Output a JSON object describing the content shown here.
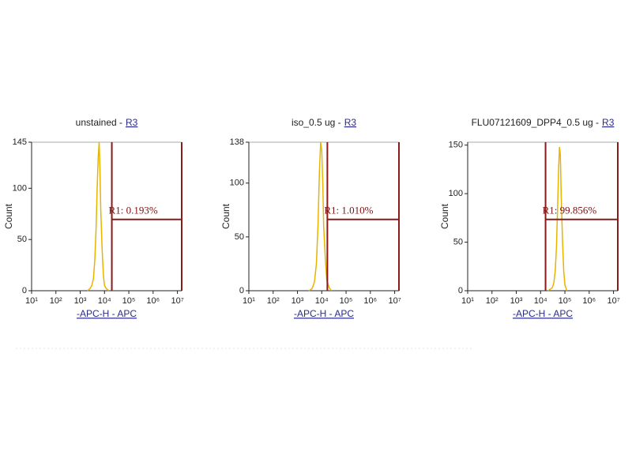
{
  "chart_data": [
    {
      "type": "histogram",
      "title": "unstained -",
      "region": "R3",
      "ylabel": "Count",
      "xlabel": "-APC-H - APC",
      "xscale": "log",
      "xlim": [
        10,
        15000000
      ],
      "xticks": [
        {
          "value": 10,
          "label": "10¹"
        },
        {
          "value": 100,
          "label": "10²"
        },
        {
          "value": 1000,
          "label": "10³"
        },
        {
          "value": 10000,
          "label": "10⁴"
        },
        {
          "value": 100000,
          "label": "10⁵"
        },
        {
          "value": 1000000,
          "label": "10⁶"
        },
        {
          "value": 10000000,
          "label": "10⁷"
        }
      ],
      "ylim": [
        0,
        145
      ],
      "yticks": [
        0,
        50,
        100,
        145
      ],
      "series": [
        {
          "color": "#e8b400",
          "x": [
            2000,
            2500,
            3000,
            3500,
            4000,
            4500,
            5000,
            5500,
            6000,
            6500,
            7000,
            8000,
            9000,
            10000,
            12000,
            15000
          ],
          "values": [
            0,
            2,
            5,
            12,
            30,
            60,
            100,
            130,
            145,
            120,
            80,
            40,
            15,
            5,
            2,
            0
          ]
        }
      ],
      "gate": {
        "label": "R1: 0.193%",
        "range": [
          20000,
          15000000
        ],
        "color": "#8b1a1a"
      }
    },
    {
      "type": "histogram",
      "title": "iso_0.5 ug -",
      "region": "R3",
      "ylabel": "Count",
      "xlabel": "-APC-H - APC",
      "xscale": "log",
      "xlim": [
        10,
        15000000
      ],
      "xticks": [
        {
          "value": 10,
          "label": "10¹"
        },
        {
          "value": 100,
          "label": "10²"
        },
        {
          "value": 1000,
          "label": "10³"
        },
        {
          "value": 10000,
          "label": "10⁴"
        },
        {
          "value": 100000,
          "label": "10⁵"
        },
        {
          "value": 1000000,
          "label": "10⁶"
        },
        {
          "value": 10000000,
          "label": "10⁷"
        }
      ],
      "ylim": [
        0,
        138
      ],
      "yticks": [
        0,
        50,
        100,
        138
      ],
      "series": [
        {
          "color": "#e8b400",
          "x": [
            3000,
            4000,
            5000,
            6000,
            7000,
            8000,
            9000,
            10000,
            11000,
            12000,
            14000,
            16000,
            20000,
            25000
          ],
          "values": [
            0,
            2,
            8,
            25,
            60,
            110,
            138,
            130,
            100,
            60,
            30,
            10,
            3,
            0
          ]
        }
      ],
      "gate": {
        "label": "R1: 1.010%",
        "range": [
          17000,
          15000000
        ],
        "color": "#8b1a1a"
      }
    },
    {
      "type": "histogram",
      "title": "FLU07121609_DPP4_0.5 ug -",
      "region": "R3",
      "ylabel": "Count",
      "xlabel": "-APC-H - APC",
      "xscale": "log",
      "xlim": [
        10,
        15000000
      ],
      "xticks": [
        {
          "value": 10,
          "label": "10¹"
        },
        {
          "value": 100,
          "label": "10²"
        },
        {
          "value": 1000,
          "label": "10³"
        },
        {
          "value": 10000,
          "label": "10⁴"
        },
        {
          "value": 100000,
          "label": "10⁵"
        },
        {
          "value": 1000000,
          "label": "10⁶"
        },
        {
          "value": 10000000,
          "label": "10⁷"
        }
      ],
      "ylim": [
        0,
        153
      ],
      "yticks": [
        0,
        50,
        100,
        150
      ],
      "series": [
        {
          "color": "#e8b400",
          "x": [
            20000,
            30000,
            35000,
            40000,
            45000,
            50000,
            55000,
            60000,
            65000,
            70000,
            80000,
            90000,
            100000,
            120000
          ],
          "values": [
            0,
            3,
            8,
            20,
            45,
            85,
            125,
            148,
            140,
            100,
            50,
            20,
            6,
            0
          ]
        }
      ],
      "gate": {
        "label": "R1: 99.856%",
        "range": [
          16000,
          15000000
        ],
        "color": "#8b1a1a"
      }
    }
  ]
}
